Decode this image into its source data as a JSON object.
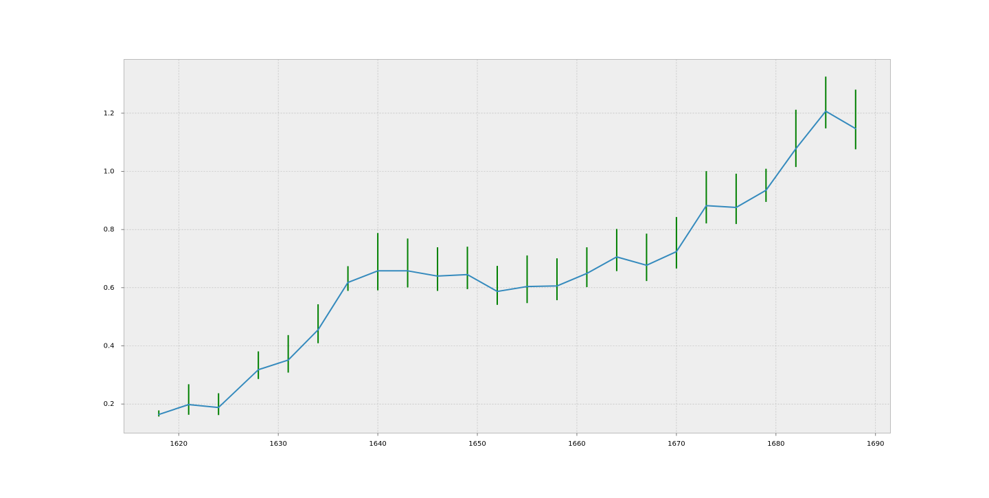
{
  "chart_data": {
    "type": "line",
    "title": "",
    "xlabel": "",
    "ylabel": "",
    "xlim": [
      1614.5,
      1691.5
    ],
    "ylim": [
      0.1,
      1.385
    ],
    "grid": true,
    "xticks": [
      1620,
      1630,
      1640,
      1650,
      1660,
      1670,
      1680,
      1690
    ],
    "xtick_labels": [
      "1620",
      "1630",
      "1640",
      "1650",
      "1660",
      "1670",
      "1680",
      "1690"
    ],
    "yticks": [
      0.2,
      0.4,
      0.6,
      0.8,
      1.0,
      1.2
    ],
    "ytick_labels": [
      "0.2",
      "0.4",
      "0.6",
      "0.8",
      "1.0",
      "1.2"
    ],
    "series": [
      {
        "color": "#348ABD",
        "error_color": "#008000",
        "x": [
          1618,
          1621,
          1624,
          1628,
          1631,
          1634,
          1637,
          1640,
          1643,
          1646,
          1649,
          1652,
          1655,
          1658,
          1661,
          1664,
          1667,
          1670,
          1673,
          1676,
          1679,
          1682,
          1685,
          1688
        ],
        "y": [
          0.164,
          0.198,
          0.188,
          0.318,
          0.351,
          0.455,
          0.618,
          0.658,
          0.658,
          0.64,
          0.645,
          0.587,
          0.604,
          0.606,
          0.649,
          0.706,
          0.677,
          0.724,
          0.882,
          0.876,
          0.935,
          1.078,
          1.207,
          1.147
        ],
        "err_low": [
          0.157,
          0.163,
          0.162,
          0.286,
          0.308,
          0.409,
          0.589,
          0.591,
          0.601,
          0.589,
          0.595,
          0.541,
          0.547,
          0.557,
          0.602,
          0.657,
          0.623,
          0.666,
          0.821,
          0.819,
          0.895,
          1.015,
          1.148,
          1.076
        ],
        "err_high": [
          0.178,
          0.268,
          0.237,
          0.381,
          0.437,
          0.543,
          0.674,
          0.788,
          0.769,
          0.739,
          0.741,
          0.675,
          0.711,
          0.701,
          0.739,
          0.802,
          0.786,
          0.843,
          1.001,
          0.992,
          1.009,
          1.212,
          1.326,
          1.281
        ]
      }
    ]
  }
}
